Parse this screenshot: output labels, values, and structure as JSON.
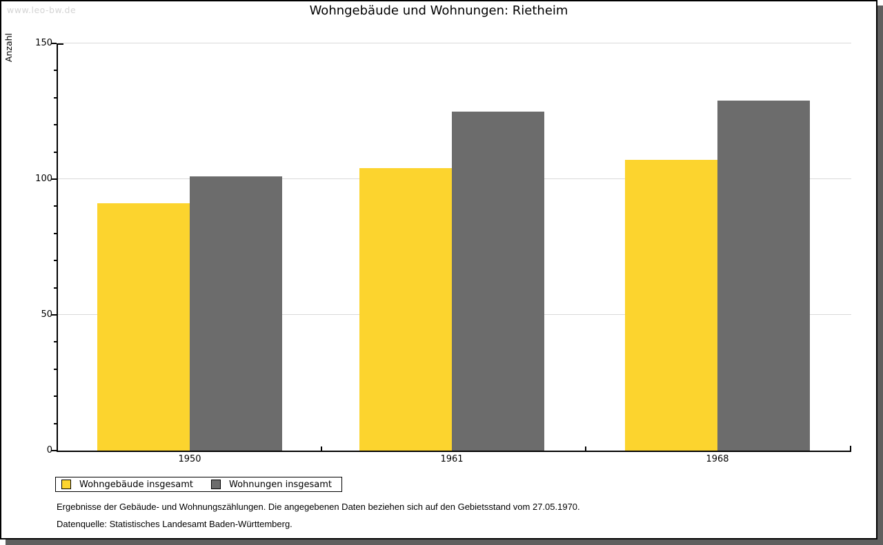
{
  "watermark": "www.leo-bw.de",
  "chart_data": {
    "type": "bar",
    "title": "Wohngebäude und Wohnungen: Rietheim",
    "ylabel": "Anzahl",
    "xlabel": "",
    "categories": [
      "1950",
      "1961",
      "1968"
    ],
    "series": [
      {
        "name": "Wohngebäude insgesamt",
        "color": "#fcd42e",
        "values": [
          91,
          104,
          107
        ]
      },
      {
        "name": "Wohnungen insgesamt",
        "color": "#6c6c6c",
        "values": [
          101,
          125,
          129
        ]
      }
    ],
    "ylim": [
      0,
      150
    ],
    "yticks_major": [
      0,
      50,
      100,
      150
    ],
    "ytick_minor_step": 10,
    "grid": true,
    "legend_position": "bottom-left"
  },
  "footnotes": [
    "Ergebnisse der Gebäude- und Wohnungszählungen. Die angegebenen Daten beziehen sich auf den Gebietsstand vom 27.05.1970.",
    "Datenquelle: Statistisches Landesamt Baden-Württemberg."
  ],
  "colors": {
    "series_wohngebaeude": "#fcd42e",
    "series_wohnungen": "#6c6c6c",
    "gridline": "#d9d9d9",
    "axis": "#000000",
    "watermark_text": "#d4d4d4",
    "panel_shadow": "#5f5f5f",
    "background": "#ffffff"
  }
}
